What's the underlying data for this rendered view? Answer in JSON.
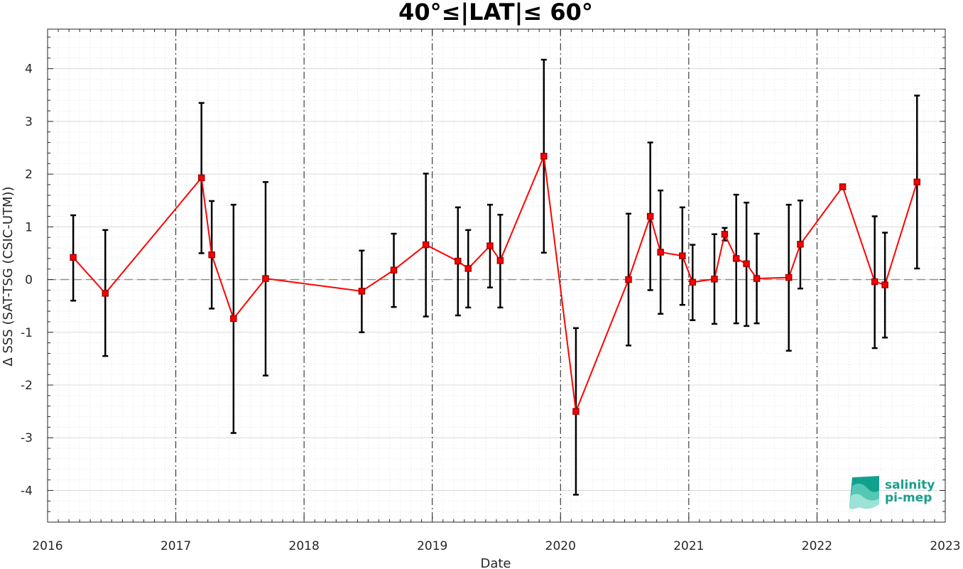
{
  "chart_data": {
    "type": "line",
    "title": "40°≤|LAT|≤ 60°",
    "xlabel": "Date",
    "ylabel": "Δ SSS (SAT-TSG (CSIC-UTM))",
    "xlim": [
      2016.0,
      2023.0
    ],
    "ylim": [
      -4.6,
      4.75
    ],
    "x_ticks": [
      "2016",
      "2017",
      "2018",
      "2019",
      "2020",
      "2021",
      "2022",
      "2023"
    ],
    "y_ticks": [
      "-4",
      "-3",
      "-2",
      "-1",
      "0",
      "1",
      "2",
      "3",
      "4"
    ],
    "year_boundaries": [
      2017,
      2018,
      2019,
      2020,
      2021,
      2022
    ],
    "zero_line": 0,
    "grid": "minor dotted + major",
    "series": [
      {
        "color": "#ff0000",
        "marker": "square",
        "points": [
          {
            "x": 2016.2,
            "y": 0.42,
            "lo": -0.4,
            "hi": 1.22
          },
          {
            "x": 2016.45,
            "y": -0.26,
            "lo": -1.45,
            "hi": 0.94
          },
          {
            "x": 2017.2,
            "y": 1.93,
            "lo": 0.5,
            "hi": 3.35
          },
          {
            "x": 2017.28,
            "y": 0.47,
            "lo": -0.55,
            "hi": 1.49
          },
          {
            "x": 2017.45,
            "y": -0.74,
            "lo": -2.91,
            "hi": 1.42
          },
          {
            "x": 2017.7,
            "y": 0.02,
            "lo": -1.82,
            "hi": 1.85
          },
          {
            "x": 2018.45,
            "y": -0.22,
            "lo": -1.0,
            "hi": 0.55
          },
          {
            "x": 2018.7,
            "y": 0.18,
            "lo": -0.52,
            "hi": 0.87
          },
          {
            "x": 2018.95,
            "y": 0.66,
            "lo": -0.7,
            "hi": 2.01
          },
          {
            "x": 2019.2,
            "y": 0.35,
            "lo": -0.68,
            "hi": 1.37
          },
          {
            "x": 2019.28,
            "y": 0.21,
            "lo": -0.53,
            "hi": 0.94
          },
          {
            "x": 2019.45,
            "y": 0.64,
            "lo": -0.15,
            "hi": 1.42
          },
          {
            "x": 2019.53,
            "y": 0.36,
            "lo": -0.53,
            "hi": 1.23
          },
          {
            "x": 2019.87,
            "y": 2.34,
            "lo": 0.51,
            "hi": 4.17
          },
          {
            "x": 2020.12,
            "y": -2.5,
            "lo": -4.08,
            "hi": -0.92
          },
          {
            "x": 2020.53,
            "y": 0.0,
            "lo": -1.25,
            "hi": 1.25
          },
          {
            "x": 2020.7,
            "y": 1.2,
            "lo": -0.2,
            "hi": 2.6
          },
          {
            "x": 2020.78,
            "y": 0.52,
            "lo": -0.65,
            "hi": 1.69
          },
          {
            "x": 2020.95,
            "y": 0.45,
            "lo": -0.48,
            "hi": 1.37
          },
          {
            "x": 2021.03,
            "y": -0.05,
            "lo": -0.77,
            "hi": 0.66
          },
          {
            "x": 2021.2,
            "y": 0.01,
            "lo": -0.84,
            "hi": 0.86
          },
          {
            "x": 2021.28,
            "y": 0.86,
            "lo": 0.74,
            "hi": 0.98
          },
          {
            "x": 2021.37,
            "y": 0.4,
            "lo": -0.83,
            "hi": 1.61
          },
          {
            "x": 2021.45,
            "y": 0.3,
            "lo": -0.88,
            "hi": 1.46
          },
          {
            "x": 2021.53,
            "y": 0.02,
            "lo": -0.83,
            "hi": 0.87
          },
          {
            "x": 2021.78,
            "y": 0.04,
            "lo": -1.35,
            "hi": 1.42
          },
          {
            "x": 2021.87,
            "y": 0.67,
            "lo": -0.17,
            "hi": 1.5
          },
          {
            "x": 2022.2,
            "y": 1.76,
            "lo": 1.72,
            "hi": 1.79
          },
          {
            "x": 2022.45,
            "y": -0.04,
            "lo": -1.3,
            "hi": 1.2
          },
          {
            "x": 2022.53,
            "y": -0.1,
            "lo": -1.1,
            "hi": 0.89
          },
          {
            "x": 2022.78,
            "y": 1.85,
            "lo": 0.21,
            "hi": 3.49
          }
        ]
      }
    ]
  },
  "logo": {
    "line1": "salinity",
    "line2": "pi-mep",
    "color": "#1a9e8e"
  }
}
